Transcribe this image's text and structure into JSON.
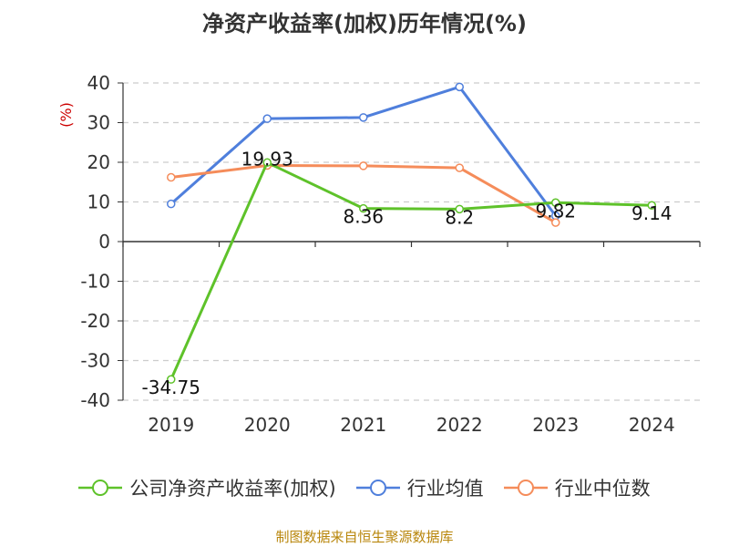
{
  "title": "净资产收益率(加权)历年情况(%)",
  "source_note": "制图数据来自恒生聚源数据库",
  "colors": {
    "company": "#5ec22a",
    "industry_avg": "#4f7fdc",
    "industry_median": "#f58c5a",
    "grid": "#cccccc",
    "axis": "#333333",
    "ylabel": "#cc0000"
  },
  "chart_data": {
    "type": "line",
    "title": "净资产收益率(加权)历年情况(%)",
    "ylabel": "(%)",
    "xlabel": "",
    "categories": [
      "2019",
      "2020",
      "2021",
      "2022",
      "2023",
      "2024"
    ],
    "ylim": [
      -40,
      40
    ],
    "yticks": [
      40,
      30,
      20,
      10,
      0,
      -10,
      -20,
      -30,
      -40
    ],
    "grid": true,
    "legend_position": "bottom",
    "series": [
      {
        "name": "公司净资产收益率(加权)",
        "color_key": "company",
        "values": [
          -34.75,
          19.93,
          8.36,
          8.2,
          9.82,
          9.14
        ],
        "labels": [
          "-34.75",
          "19.93",
          "8.36",
          "8.2",
          "9.82",
          "9.14"
        ]
      },
      {
        "name": "行业均值",
        "color_key": "industry_avg",
        "values": [
          9.5,
          31,
          31.3,
          39,
          6.5,
          null
        ]
      },
      {
        "name": "行业中位数",
        "color_key": "industry_median",
        "values": [
          16.2,
          19.2,
          19.1,
          18.6,
          4.8,
          null
        ]
      }
    ]
  }
}
